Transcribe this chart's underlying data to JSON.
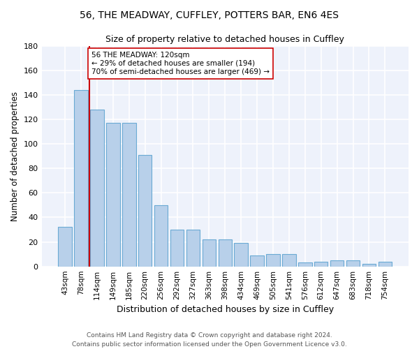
{
  "title1": "56, THE MEADWAY, CUFFLEY, POTTERS BAR, EN6 4ES",
  "title2": "Size of property relative to detached houses in Cuffley",
  "xlabel": "Distribution of detached houses by size in Cuffley",
  "ylabel": "Number of detached properties",
  "bar_heights": [
    32,
    144,
    128,
    117,
    117,
    91,
    50,
    30,
    30,
    22,
    22,
    19,
    9,
    10,
    10,
    3,
    4,
    5,
    5,
    2,
    4
  ],
  "categories": [
    "43sqm",
    "78sqm",
    "114sqm",
    "149sqm",
    "185sqm",
    "220sqm",
    "256sqm",
    "292sqm",
    "327sqm",
    "363sqm",
    "398sqm",
    "434sqm",
    "469sqm",
    "505sqm",
    "541sqm",
    "576sqm",
    "612sqm",
    "647sqm",
    "683sqm",
    "718sqm",
    "754sqm"
  ],
  "bar_color": "#b8d0ea",
  "bar_edge_color": "#6aaad4",
  "background_color": "#eef2fb",
  "grid_color": "#ffffff",
  "annotation_text": "56 THE MEADWAY: 120sqm\n← 29% of detached houses are smaller (194)\n70% of semi-detached houses are larger (469) →",
  "vline_color": "#cc0000",
  "annotation_box_color": "#ffffff",
  "annotation_box_edge": "#cc0000",
  "ylim": [
    0,
    180
  ],
  "yticks": [
    0,
    20,
    40,
    60,
    80,
    100,
    120,
    140,
    160,
    180
  ],
  "footer": "Contains HM Land Registry data © Crown copyright and database right 2024.\nContains public sector information licensed under the Open Government Licence v3.0."
}
